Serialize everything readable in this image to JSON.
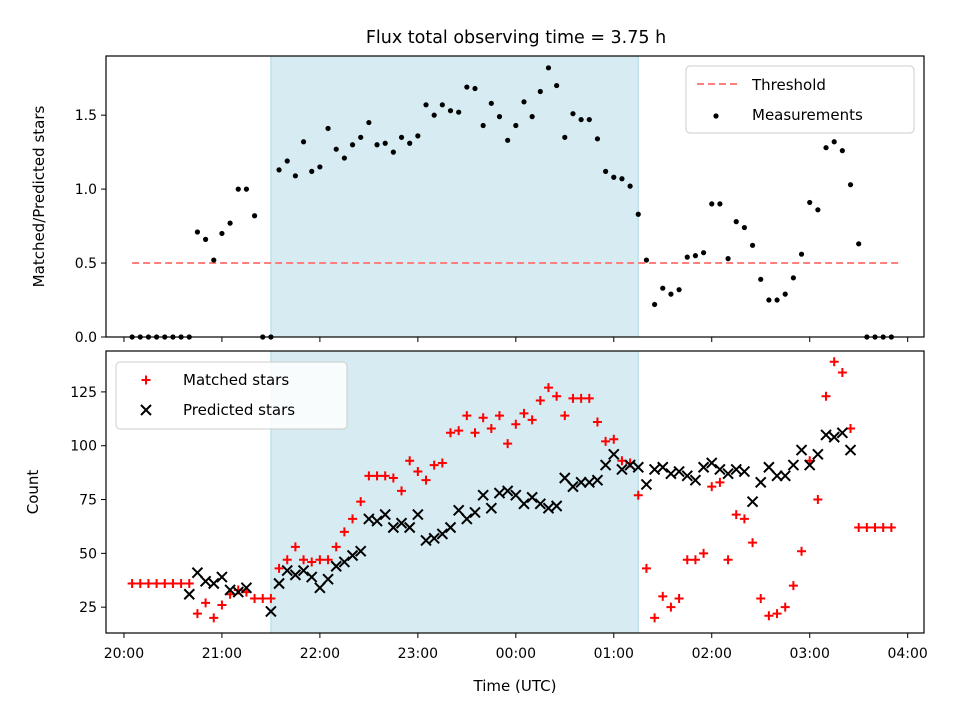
{
  "title": "Flux total observing time = 3.75 h",
  "chart_data": [
    {
      "type": "scatter",
      "ylabel": "Matched/Predicted stars",
      "xlabel": "",
      "xlim": [
        "19:49",
        "04:10"
      ],
      "ylim": [
        0,
        1.9
      ],
      "yticks": [
        0.0,
        0.5,
        1.0,
        1.5
      ],
      "ytick_labels": [
        "0.0",
        "0.5",
        "1.0",
        "1.5"
      ],
      "highlight_span": [
        "21:30",
        "01:15"
      ],
      "legend_position": "upper right",
      "threshold": {
        "name": "Threshold",
        "value": 0.5,
        "x_range": [
          "20:05",
          "03:55"
        ],
        "color": "#ff7f7f"
      },
      "series": [
        {
          "name": "Measurements",
          "color": "#000000",
          "x": [
            "20:05",
            "20:10",
            "20:15",
            "20:20",
            "20:25",
            "20:30",
            "20:35",
            "20:40",
            "20:45",
            "20:50",
            "20:55",
            "21:00",
            "21:05",
            "21:10",
            "21:15",
            "21:20",
            "21:25",
            "21:30",
            "21:35",
            "21:40",
            "21:45",
            "21:50",
            "21:55",
            "22:00",
            "22:05",
            "22:10",
            "22:15",
            "22:20",
            "22:25",
            "22:30",
            "22:35",
            "22:40",
            "22:45",
            "22:50",
            "22:55",
            "23:00",
            "23:05",
            "23:10",
            "23:15",
            "23:20",
            "23:25",
            "23:30",
            "23:35",
            "23:40",
            "23:45",
            "23:50",
            "23:55",
            "00:00",
            "00:05",
            "00:10",
            "00:15",
            "00:20",
            "00:25",
            "00:30",
            "00:35",
            "00:40",
            "00:45",
            "00:50",
            "00:55",
            "01:00",
            "01:05",
            "01:10",
            "01:15",
            "01:20",
            "01:25",
            "01:30",
            "01:35",
            "01:40",
            "01:45",
            "01:50",
            "01:55",
            "02:00",
            "02:05",
            "02:10",
            "02:15",
            "02:20",
            "02:25",
            "02:30",
            "02:35",
            "02:40",
            "02:45",
            "02:50",
            "02:55",
            "03:00",
            "03:05",
            "03:10",
            "03:15",
            "03:20",
            "03:25",
            "03:30",
            "03:35",
            "03:40",
            "03:45",
            "03:50"
          ],
          "y": [
            0.0,
            0.0,
            0.0,
            0.0,
            0.0,
            0.0,
            0.0,
            0.0,
            0.71,
            0.66,
            0.52,
            0.7,
            0.77,
            1.0,
            1.0,
            0.82,
            0.0,
            0.0,
            1.13,
            1.19,
            1.09,
            1.32,
            1.12,
            1.15,
            1.41,
            1.27,
            1.21,
            1.3,
            1.35,
            1.45,
            1.3,
            1.31,
            1.25,
            1.35,
            1.31,
            1.36,
            1.57,
            1.5,
            1.57,
            1.53,
            1.52,
            1.69,
            1.68,
            1.43,
            1.58,
            1.49,
            1.33,
            1.43,
            1.59,
            1.49,
            1.66,
            1.82,
            1.7,
            1.35,
            1.51,
            1.47,
            1.47,
            1.34,
            1.12,
            1.08,
            1.07,
            1.02,
            0.83,
            0.52,
            0.22,
            0.33,
            0.29,
            0.32,
            0.54,
            0.55,
            0.57,
            0.9,
            0.9,
            0.53,
            0.78,
            0.74,
            0.62,
            0.39,
            0.25,
            0.25,
            0.29,
            0.4,
            0.56,
            0.91,
            0.86,
            1.28,
            1.32,
            1.26,
            1.03,
            0.63,
            0.0,
            0.0,
            0.0,
            0.0
          ]
        }
      ]
    },
    {
      "type": "scatter",
      "ylabel": "Count",
      "xlabel": "Time (UTC)",
      "xlim": [
        "19:49",
        "04:10"
      ],
      "ylim": [
        13,
        144
      ],
      "yticks": [
        25,
        50,
        75,
        100,
        125
      ],
      "ytick_labels": [
        "25",
        "50",
        "75",
        "100",
        "125"
      ],
      "xticks": [
        "20:00",
        "21:00",
        "22:00",
        "23:00",
        "00:00",
        "01:00",
        "02:00",
        "03:00",
        "04:00"
      ],
      "xtick_labels": [
        "20:00",
        "21:00",
        "22:00",
        "23:00",
        "00:00",
        "01:00",
        "02:00",
        "03:00",
        "04:00"
      ],
      "highlight_span": [
        "21:30",
        "01:15"
      ],
      "legend_position": "upper left",
      "series": [
        {
          "name": "Matched stars",
          "color": "#ff0000",
          "marker": "+",
          "x": [
            "20:05",
            "20:10",
            "20:15",
            "20:20",
            "20:25",
            "20:30",
            "20:35",
            "20:40",
            "20:45",
            "20:50",
            "20:55",
            "21:00",
            "21:05",
            "21:10",
            "21:15",
            "21:20",
            "21:25",
            "21:30",
            "21:35",
            "21:40",
            "21:45",
            "21:50",
            "21:55",
            "22:00",
            "22:05",
            "22:10",
            "22:15",
            "22:20",
            "22:25",
            "22:30",
            "22:35",
            "22:40",
            "22:45",
            "22:50",
            "22:55",
            "23:00",
            "23:05",
            "23:10",
            "23:15",
            "23:20",
            "23:25",
            "23:30",
            "23:35",
            "23:40",
            "23:45",
            "23:50",
            "23:55",
            "00:00",
            "00:05",
            "00:10",
            "00:15",
            "00:20",
            "00:25",
            "00:30",
            "00:35",
            "00:40",
            "00:45",
            "00:50",
            "00:55",
            "01:00",
            "01:05",
            "01:10",
            "01:15",
            "01:20",
            "01:25",
            "01:30",
            "01:35",
            "01:40",
            "01:45",
            "01:50",
            "01:55",
            "02:00",
            "02:05",
            "02:10",
            "02:15",
            "02:20",
            "02:25",
            "02:30",
            "02:35",
            "02:40",
            "02:45",
            "02:50",
            "02:55",
            "03:00",
            "03:05",
            "03:10",
            "03:15",
            "03:20",
            "03:25",
            "03:30",
            "03:35",
            "03:40",
            "03:45",
            "03:50"
          ],
          "y": [
            36,
            36,
            36,
            36,
            36,
            36,
            36,
            36,
            22,
            27,
            20,
            26,
            31,
            33,
            32,
            29,
            29,
            29,
            43,
            47,
            53,
            47,
            46,
            47,
            47,
            53,
            60,
            66,
            74,
            86,
            86,
            86,
            85,
            79,
            93,
            88,
            84,
            91,
            92,
            106,
            107,
            114,
            106,
            113,
            108,
            114,
            101,
            110,
            115,
            112,
            121,
            127,
            123,
            114,
            122,
            122,
            122,
            111,
            102,
            103,
            93,
            92,
            77,
            43,
            20,
            30,
            25,
            29,
            47,
            47,
            50,
            81,
            83,
            47,
            68,
            66,
            55,
            29,
            21,
            22,
            25,
            35,
            51,
            93,
            75,
            123,
            139,
            134,
            108,
            62,
            62,
            62,
            62,
            62
          ]
        },
        {
          "name": "Predicted stars",
          "color": "#000000",
          "marker": "x",
          "x": [
            "20:40",
            "20:45",
            "20:50",
            "20:55",
            "21:00",
            "21:05",
            "21:10",
            "21:15",
            "21:30",
            "21:35",
            "21:40",
            "21:45",
            "21:50",
            "21:55",
            "22:00",
            "22:05",
            "22:10",
            "22:15",
            "22:20",
            "22:25",
            "22:30",
            "22:35",
            "22:40",
            "22:45",
            "22:50",
            "22:55",
            "23:00",
            "23:05",
            "23:10",
            "23:15",
            "23:20",
            "23:25",
            "23:30",
            "23:35",
            "23:40",
            "23:45",
            "23:50",
            "23:55",
            "00:00",
            "00:05",
            "00:10",
            "00:15",
            "00:20",
            "00:25",
            "00:30",
            "00:35",
            "00:40",
            "00:45",
            "00:50",
            "00:55",
            "01:00",
            "01:05",
            "01:10",
            "01:15",
            "01:20",
            "01:25",
            "01:30",
            "01:35",
            "01:40",
            "01:45",
            "01:50",
            "01:55",
            "02:00",
            "02:05",
            "02:10",
            "02:15",
            "02:20",
            "02:25",
            "02:30",
            "02:35",
            "02:40",
            "02:45",
            "02:50",
            "02:55",
            "03:00",
            "03:05",
            "03:10",
            "03:15",
            "03:20",
            "03:25"
          ],
          "y": [
            31,
            41,
            37,
            36,
            39,
            33,
            32,
            34,
            23,
            36,
            42,
            40,
            42,
            39,
            34,
            38,
            44,
            46,
            49,
            51,
            66,
            65,
            68,
            62,
            64,
            62,
            68,
            56,
            57,
            59,
            62,
            70,
            66,
            69,
            77,
            71,
            78,
            79,
            77,
            73,
            76,
            73,
            71,
            72,
            85,
            81,
            83,
            83,
            84,
            91,
            96,
            89,
            91,
            90,
            82,
            89,
            90,
            87,
            88,
            86,
            84,
            90,
            92,
            89,
            87,
            89,
            88,
            74,
            83,
            90,
            86,
            86,
            91,
            98,
            91,
            96,
            105,
            104,
            106,
            98
          ]
        }
      ]
    }
  ]
}
